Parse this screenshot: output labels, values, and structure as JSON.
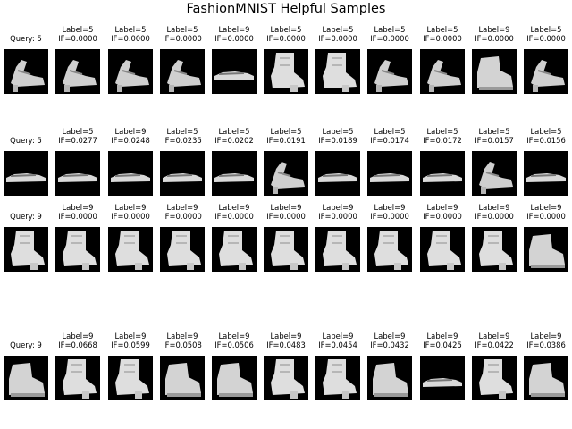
{
  "title": "FashionMNIST Helpful Samples",
  "label_prefix": "Label=",
  "if_prefix": "IF=",
  "query_prefix": "Query: ",
  "rows": [
    {
      "query_label": "5",
      "samples": [
        {
          "label": "5",
          "if": "0.0000"
        },
        {
          "label": "5",
          "if": "0.0000"
        },
        {
          "label": "5",
          "if": "0.0000"
        },
        {
          "label": "9",
          "if": "0.0000"
        },
        {
          "label": "5",
          "if": "0.0000"
        },
        {
          "label": "5",
          "if": "0.0000"
        },
        {
          "label": "5",
          "if": "0.0000"
        },
        {
          "label": "5",
          "if": "0.0000"
        },
        {
          "label": "9",
          "if": "0.0000"
        },
        {
          "label": "5",
          "if": "0.0000"
        }
      ]
    },
    {
      "query_label": "5",
      "samples": [
        {
          "label": "5",
          "if": "0.0277"
        },
        {
          "label": "9",
          "if": "0.0248"
        },
        {
          "label": "5",
          "if": "0.0235"
        },
        {
          "label": "5",
          "if": "0.0202"
        },
        {
          "label": "5",
          "if": "0.0191"
        },
        {
          "label": "5",
          "if": "0.0189"
        },
        {
          "label": "5",
          "if": "0.0174"
        },
        {
          "label": "5",
          "if": "0.0172"
        },
        {
          "label": "5",
          "if": "0.0157"
        },
        {
          "label": "5",
          "if": "0.0156"
        }
      ]
    },
    {
      "query_label": "9",
      "samples": [
        {
          "label": "9",
          "if": "0.0000"
        },
        {
          "label": "9",
          "if": "0.0000"
        },
        {
          "label": "9",
          "if": "0.0000"
        },
        {
          "label": "9",
          "if": "0.0000"
        },
        {
          "label": "9",
          "if": "0.0000"
        },
        {
          "label": "9",
          "if": "0.0000"
        },
        {
          "label": "9",
          "if": "0.0000"
        },
        {
          "label": "9",
          "if": "0.0000"
        },
        {
          "label": "9",
          "if": "0.0000"
        },
        {
          "label": "9",
          "if": "0.0000"
        }
      ]
    },
    {
      "query_label": "9",
      "samples": [
        {
          "label": "9",
          "if": "0.0668"
        },
        {
          "label": "9",
          "if": "0.0599"
        },
        {
          "label": "9",
          "if": "0.0508"
        },
        {
          "label": "9",
          "if": "0.0506"
        },
        {
          "label": "9",
          "if": "0.0483"
        },
        {
          "label": "9",
          "if": "0.0454"
        },
        {
          "label": "9",
          "if": "0.0432"
        },
        {
          "label": "9",
          "if": "0.0425"
        },
        {
          "label": "9",
          "if": "0.0422"
        },
        {
          "label": "9",
          "if": "0.0386"
        }
      ]
    }
  ]
}
